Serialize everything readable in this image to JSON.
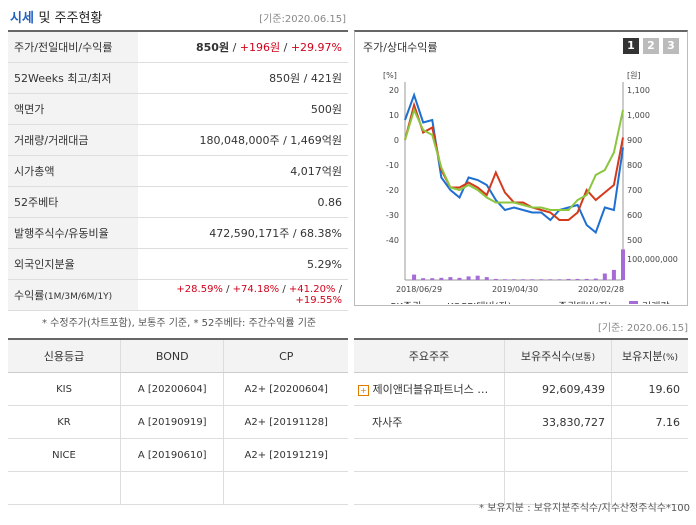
{
  "header": {
    "title_main": "시세",
    "title_rest": "및 주주현황",
    "basis_date": "[기준:2020.06.15]"
  },
  "summary": {
    "rows": [
      {
        "label": "주가/전일대비/수익률",
        "price": "850원",
        "change": "+196원",
        "rate": "+29.97%"
      },
      {
        "label": "52Weeks 최고/최저",
        "value": "850원 / 421원"
      },
      {
        "label": "액면가",
        "value": "500원"
      },
      {
        "label": "거래량/거래대금",
        "value": "180,048,000주 / 1,469억원"
      },
      {
        "label": "시가총액",
        "value": "4,017억원"
      },
      {
        "label": "52주베타",
        "value": "0.86"
      },
      {
        "label": "발행주식수/유동비율",
        "value": "472,590,171주 / 68.38%"
      },
      {
        "label": "외국인지분율",
        "value": "5.29%"
      },
      {
        "label": "수익률",
        "label_sub": "(1M/3M/6M/1Y)",
        "r1": "+28.59%",
        "r2": "+74.18%",
        "r3": "+41.20%",
        "r4": "+19.55%"
      }
    ],
    "note": "* 수정주가(차트포함), 보통주 기준, * 52주베타: 주간수익률 기준"
  },
  "chart_panel": {
    "title": "주가/상대수익률",
    "pages": [
      "1",
      "2",
      "3"
    ]
  },
  "chart_data": {
    "type": "line",
    "left_axis_unit": "[%]",
    "right_axis_unit": "[원]",
    "y_left_ticks": [
      "20",
      "10",
      "0",
      "-10",
      "-20",
      "-30",
      "-40"
    ],
    "y_right_ticks": [
      "1,100",
      "1,000",
      "900",
      "800",
      "700",
      "600",
      "500"
    ],
    "volume_tick": "100,000,000",
    "x_labels": [
      "2018/06/29",
      "2019/04/30",
      "2020/02/28"
    ],
    "ylim_left": [
      -40,
      20
    ],
    "ylim_right": [
      500,
      1100
    ],
    "series": [
      {
        "name": "SK증권",
        "color": "#1f6fd1",
        "values": [
          8,
          18,
          7,
          8,
          -15,
          -20,
          -23,
          -15,
          -16,
          -18,
          -24,
          -28,
          -27,
          -28,
          -29,
          -29,
          -32,
          -28,
          -27,
          -26,
          -34,
          -37,
          -27,
          -28,
          -3
        ]
      },
      {
        "name": "KOSPI대비(좌)",
        "color": "#d43a1a",
        "values": [
          0,
          14,
          3,
          5,
          -12,
          -19,
          -19,
          -17,
          -19,
          -22,
          -13,
          -21,
          -25,
          -25,
          -27,
          -28,
          -29,
          -32,
          -32,
          -29,
          -20,
          -24,
          -21,
          -18,
          1
        ]
      },
      {
        "name": "증권대비(좌)",
        "color": "#8cc63f",
        "values": [
          0,
          12,
          4,
          2,
          -11,
          -19,
          -20,
          -18,
          -20,
          -23,
          -25,
          -25,
          -25,
          -26,
          -27,
          -27,
          -28,
          -28,
          -28,
          -24,
          -22,
          -14,
          -12,
          -5,
          12
        ]
      },
      {
        "name": "거래량",
        "color": "#a56bd6",
        "values": [
          0,
          1.5,
          0.5,
          0.5,
          0.6,
          0.8,
          0.6,
          1.0,
          1.2,
          0.8,
          0.3,
          0.2,
          0.2,
          0.2,
          0.2,
          0.2,
          0.2,
          0.2,
          0.3,
          0.3,
          0.3,
          0.4,
          1.8,
          2.8,
          8.5
        ]
      }
    ]
  },
  "basis_date_2": "[기준: 2020.06.15]",
  "credit": {
    "headers": [
      "신용등급",
      "BOND",
      "CP"
    ],
    "rows": [
      {
        "agency": "KIS",
        "bond": "A  [20200604]",
        "cp": "A2+  [20200604]"
      },
      {
        "agency": "KR",
        "bond": "A  [20190919]",
        "cp": "A2+  [20191128]"
      },
      {
        "agency": "NICE",
        "bond": "A  [20190610]",
        "cp": "A2+  [20191219]"
      }
    ]
  },
  "holders": {
    "headers": [
      "주요주주",
      "보유주식수",
      "(보통)",
      "보유지분",
      "(%)"
    ],
    "rows": [
      {
        "name": "제이앤더블유파트너스 …",
        "shares": "92,609,439",
        "pct": "19.60"
      },
      {
        "name": "자사주",
        "shares": "33,830,727",
        "pct": "7.16"
      }
    ],
    "note": "* 보유지분 : 보유지분주식수/지수산정주식수*100"
  }
}
